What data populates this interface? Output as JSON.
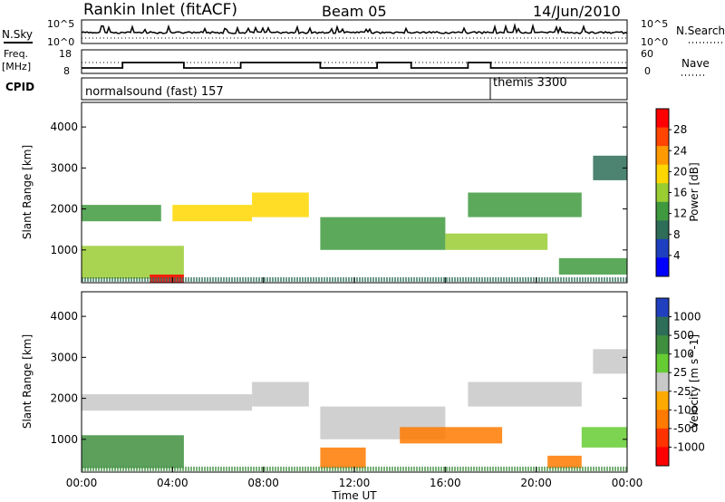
{
  "header": {
    "station": "Rankin Inlet (fitACF)",
    "beam": "Beam 05",
    "date": "14/Jun/2010"
  },
  "noise_panel": {
    "left_label": "N.Sky",
    "right_label": "N.Search",
    "left_ticks": [
      "10^5",
      "10^0"
    ],
    "right_ticks": [
      "10^5",
      "10^0"
    ]
  },
  "freq_panel": {
    "left_label_1": "Freq.",
    "left_label_2": "[MHz]",
    "right_label": "Nave",
    "left_ticks": [
      "18",
      "8"
    ],
    "right_ticks": [
      "60",
      "0"
    ]
  },
  "cpid_panel": {
    "label": "CPID",
    "modes": [
      {
        "name": "normalsound (fast) 157",
        "start_hour": 0
      },
      {
        "name": "themis 3300",
        "start_hour": 18
      }
    ]
  },
  "colors": {
    "power": [
      "#0000ff",
      "#1e3fbf",
      "#2e6d58",
      "#3f9a3f",
      "#9acd32",
      "#ffd700",
      "#ff9900",
      "#ff4500",
      "#ff0000"
    ],
    "velocity": [
      "#2040c0",
      "#2e6d58",
      "#3f8f3f",
      "#66cc33",
      "#c8c8c8",
      "#ffaa00",
      "#ff7a00",
      "#ff3300",
      "#ff0000"
    ]
  },
  "chart_data": [
    {
      "type": "heatmap",
      "name": "power",
      "ylabel": "Slant Range [km]",
      "yticks": [
        1000,
        2000,
        3000,
        4000
      ],
      "ylim": [
        200,
        4600
      ],
      "colorbar_label": "Power [dB]",
      "colorbar_ticks": [
        "4",
        "8",
        "12",
        "16",
        "20",
        "24",
        "28"
      ],
      "bands": [
        {
          "t0": 0.0,
          "t1": 4.5,
          "r0": 300,
          "r1": 1100,
          "level": 4
        },
        {
          "t0": 0.0,
          "t1": 3.5,
          "r0": 1700,
          "r1": 2100,
          "level": 3
        },
        {
          "t0": 4.0,
          "t1": 7.5,
          "r0": 1700,
          "r1": 2100,
          "level": 5
        },
        {
          "t0": 7.5,
          "t1": 10.0,
          "r0": 1800,
          "r1": 2400,
          "level": 5
        },
        {
          "t0": 10.5,
          "t1": 16.0,
          "r0": 1000,
          "r1": 1800,
          "level": 3
        },
        {
          "t0": 16.0,
          "t1": 20.5,
          "r0": 1000,
          "r1": 1400,
          "level": 4
        },
        {
          "t0": 17.0,
          "t1": 22.0,
          "r0": 1800,
          "r1": 2400,
          "level": 3
        },
        {
          "t0": 21.0,
          "t1": 24.0,
          "r0": 400,
          "r1": 800,
          "level": 3
        },
        {
          "t0": 22.5,
          "t1": 24.0,
          "r0": 2700,
          "r1": 3300,
          "level": 2
        },
        {
          "t0": 3.0,
          "t1": 4.5,
          "r0": 200,
          "r1": 400,
          "level": 8
        }
      ]
    },
    {
      "type": "heatmap",
      "name": "velocity",
      "ylabel": "Slant Range [km]",
      "yticks": [
        1000,
        2000,
        3000,
        4000
      ],
      "ylim": [
        200,
        4600
      ],
      "xlabel": "Time UT",
      "xticks": [
        "00:00",
        "04:00",
        "08:00",
        "12:00",
        "16:00",
        "20:00",
        "00:00"
      ],
      "xlim": [
        0,
        24
      ],
      "colorbar_label": "Velocity [m s^-1]",
      "colorbar_ticks": [
        "1000",
        "500",
        "100",
        "25",
        "-25",
        "-100",
        "-500",
        "-1000"
      ],
      "bands": [
        {
          "t0": 0.0,
          "t1": 4.5,
          "r0": 300,
          "r1": 1100,
          "level": 2
        },
        {
          "t0": 0.0,
          "t1": 7.5,
          "r0": 1700,
          "r1": 2100,
          "level": 4
        },
        {
          "t0": 7.5,
          "t1": 10.0,
          "r0": 1800,
          "r1": 2400,
          "level": 4
        },
        {
          "t0": 10.5,
          "t1": 16.0,
          "r0": 1000,
          "r1": 1800,
          "level": 4
        },
        {
          "t0": 14.0,
          "t1": 18.5,
          "r0": 900,
          "r1": 1300,
          "level": 6
        },
        {
          "t0": 17.0,
          "t1": 22.0,
          "r0": 1800,
          "r1": 2400,
          "level": 4
        },
        {
          "t0": 20.5,
          "t1": 22.0,
          "r0": 300,
          "r1": 600,
          "level": 6
        },
        {
          "t0": 10.5,
          "t1": 12.5,
          "r0": 300,
          "r1": 800,
          "level": 6
        },
        {
          "t0": 22.5,
          "t1": 24.0,
          "r0": 2600,
          "r1": 3200,
          "level": 4
        },
        {
          "t0": 22.0,
          "t1": 24.0,
          "r0": 800,
          "r1": 1300,
          "level": 3
        }
      ]
    }
  ]
}
